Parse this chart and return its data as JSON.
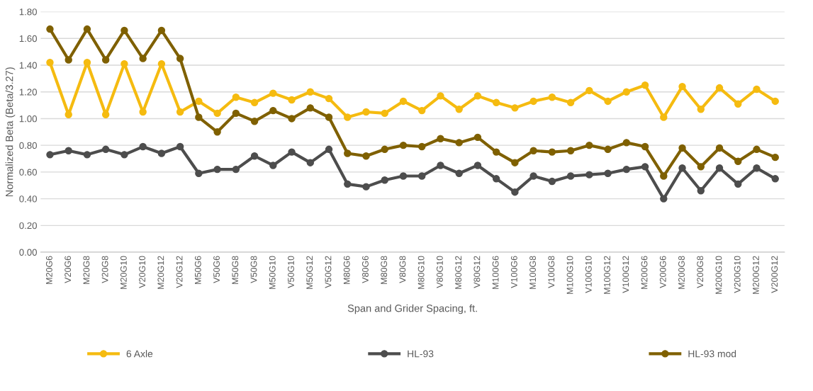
{
  "chart_data": {
    "type": "line",
    "xlabel": "Span and Grider Spacing, ft.",
    "ylabel": "Normalized Beta (Beta/3.27)",
    "categories": [
      "M20G6",
      "V20G6",
      "M20G8",
      "V20G8",
      "M20G10",
      "V20G10",
      "M20G12",
      "V20G12",
      "M50G6",
      "V50G6",
      "M50G8",
      "V50G8",
      "M50G10",
      "V50G10",
      "M50G12",
      "V50G12",
      "M80G6",
      "V80G6",
      "M80G8",
      "V80G8",
      "M80G10",
      "V80G10",
      "M80G12",
      "V80G12",
      "M100G6",
      "V100G6",
      "M100G8",
      "V100G8",
      "M100G10",
      "V100G10",
      "M100G12",
      "V100G12",
      "M200G6",
      "V200G6",
      "M200G8",
      "V200G8",
      "M200G10",
      "V200G10",
      "M200G12",
      "V200G12"
    ],
    "series": [
      {
        "name": "6 Axle",
        "color": "#f5bb10",
        "values": [
          1.42,
          1.03,
          1.42,
          1.03,
          1.41,
          1.05,
          1.41,
          1.05,
          1.13,
          1.04,
          1.16,
          1.12,
          1.19,
          1.14,
          1.2,
          1.15,
          1.01,
          1.05,
          1.04,
          1.13,
          1.06,
          1.17,
          1.07,
          1.17,
          1.12,
          1.08,
          1.13,
          1.16,
          1.12,
          1.21,
          1.13,
          1.2,
          1.25,
          1.01,
          1.24,
          1.07,
          1.23,
          1.11,
          1.22,
          1.13
        ]
      },
      {
        "name": "HL-93",
        "color": "#4d4d4d",
        "values": [
          0.73,
          0.76,
          0.73,
          0.77,
          0.73,
          0.79,
          0.74,
          0.79,
          0.59,
          0.62,
          0.62,
          0.72,
          0.65,
          0.75,
          0.67,
          0.77,
          0.51,
          0.49,
          0.54,
          0.57,
          0.57,
          0.65,
          0.59,
          0.65,
          0.55,
          0.45,
          0.57,
          0.53,
          0.57,
          0.58,
          0.59,
          0.62,
          0.64,
          0.4,
          0.63,
          0.46,
          0.63,
          0.51,
          0.63,
          0.55
        ]
      },
      {
        "name": "HL-93 mod",
        "color": "#7f6000",
        "values": [
          1.67,
          1.44,
          1.67,
          1.44,
          1.66,
          1.45,
          1.66,
          1.45,
          1.01,
          0.9,
          1.04,
          0.98,
          1.06,
          1.0,
          1.08,
          1.01,
          0.74,
          0.72,
          0.77,
          0.8,
          0.79,
          0.85,
          0.82,
          0.86,
          0.75,
          0.67,
          0.76,
          0.75,
          0.76,
          0.8,
          0.77,
          0.82,
          0.79,
          0.57,
          0.78,
          0.64,
          0.78,
          0.68,
          0.77,
          0.71
        ]
      }
    ],
    "ylim": [
      0,
      1.8
    ],
    "yticks": [
      {
        "value": 0,
        "label": "0.00"
      },
      {
        "value": 0.2,
        "label": "0.20"
      },
      {
        "value": 0.4,
        "label": "0.40"
      },
      {
        "value": 0.6,
        "label": "0.60"
      },
      {
        "value": 0.8,
        "label": "0.80"
      },
      {
        "value": 1.0,
        "label": "1.00"
      },
      {
        "value": 1.2,
        "label": "1.20"
      },
      {
        "value": 1.4,
        "label": "1.40"
      },
      {
        "value": 1.6,
        "label": "1.60"
      },
      {
        "value": 1.8,
        "label": "1.80"
      }
    ],
    "grid": "y",
    "legend": "bottom",
    "marker": "circle",
    "line_style": "solid"
  }
}
